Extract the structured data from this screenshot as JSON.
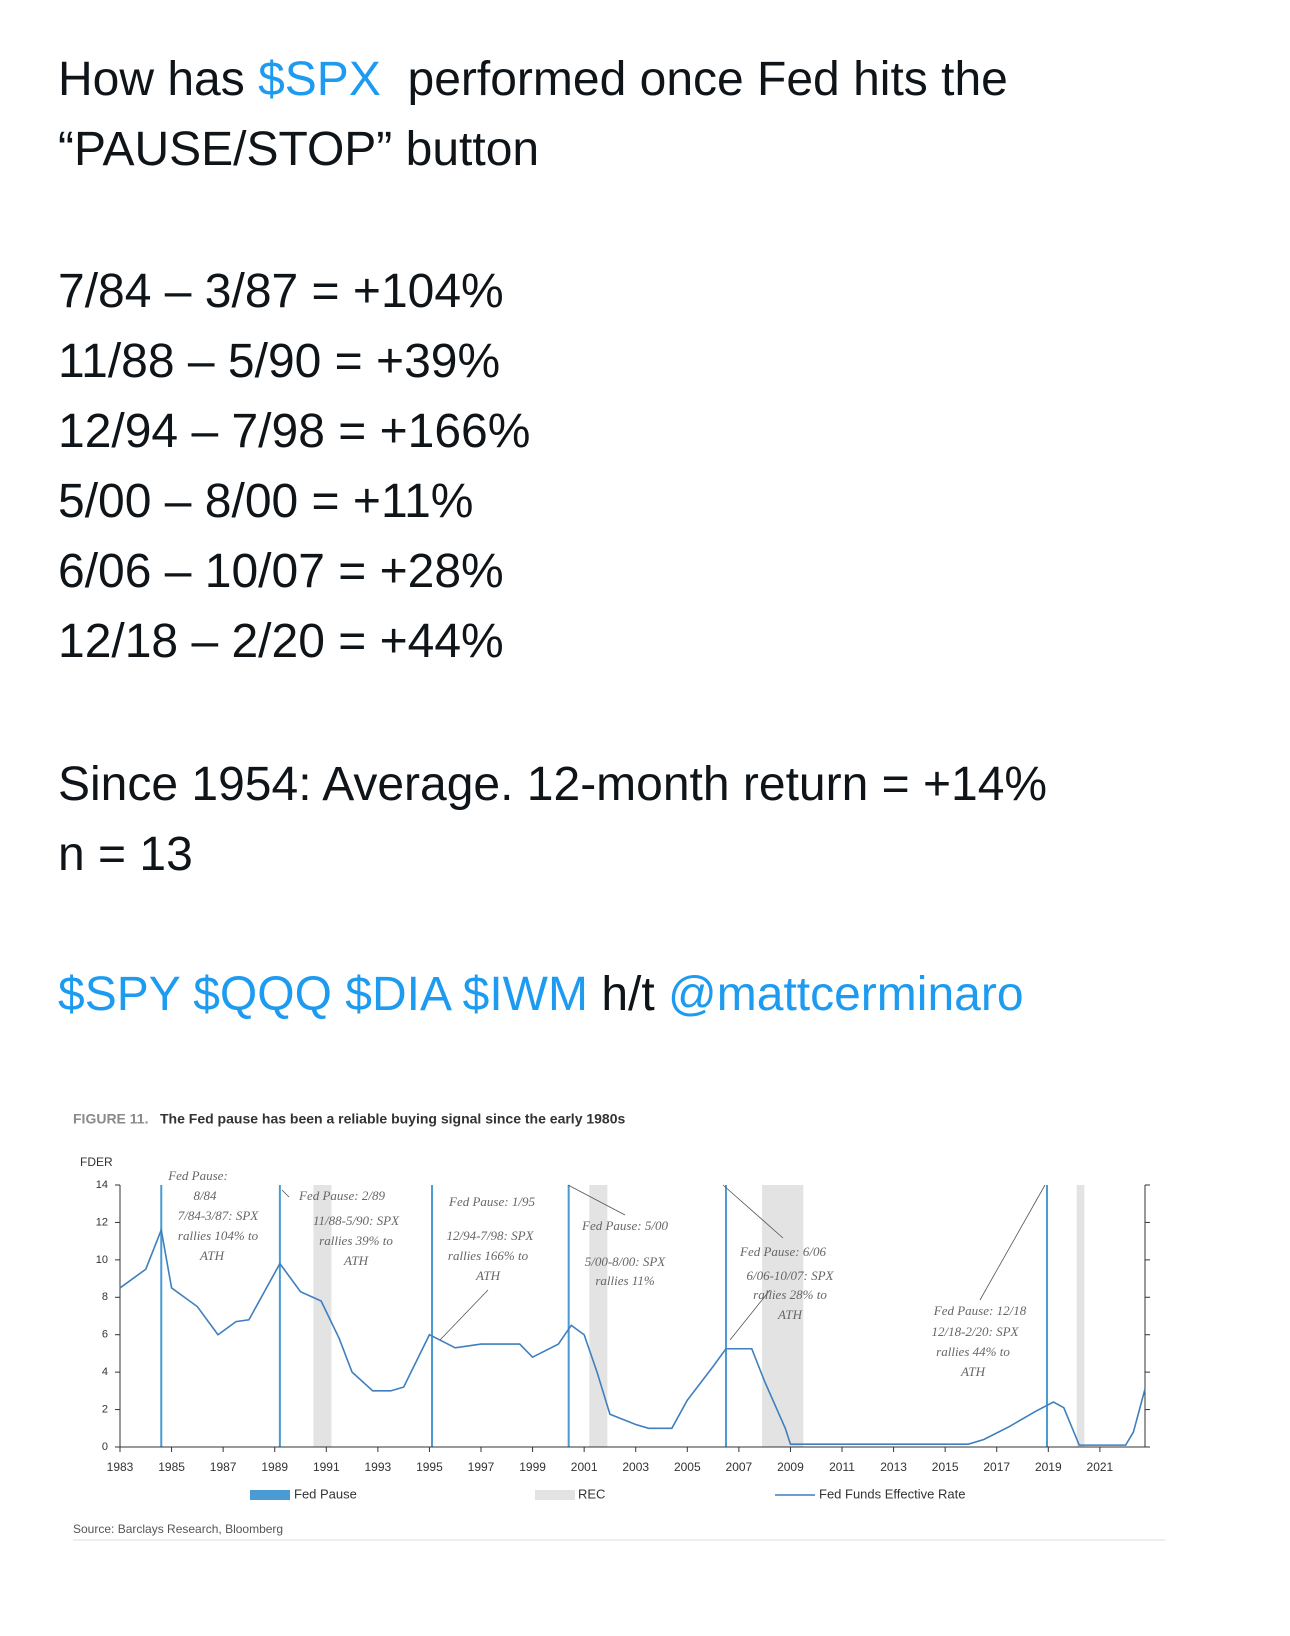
{
  "tweet": {
    "intro_before": "How has",
    "intro_cashtag": "$SPX",
    "intro_after": "performed once Fed hits the",
    "intro_line2": "“PAUSE/STOP” button",
    "periods": [
      "7/84 – 3/87 = +104%",
      "11/88 – 5/90 = +39%",
      "12/94 – 7/98 = +166%",
      "5/00 – 8/00 = +11%",
      "6/06 – 10/07 = +28%",
      "12/18 – 2/20 = +44%"
    ],
    "average": "Since 1954: Average. 12-month return = +14%",
    "n": "n = 13",
    "tags": "$SPY $QQQ $DIA $IWM",
    "ht": "h/t",
    "mention": "@mattcerminaro"
  },
  "chart_data": {
    "type": "line",
    "figure_label": "FIGURE 11.",
    "title": "The Fed pause has been a reliable buying signal since the early 1980s",
    "ylabel": "FDER",
    "xlim": [
      1983,
      2022.75
    ],
    "xticks": [
      1983,
      1985,
      1987,
      1989,
      1991,
      1993,
      1995,
      1997,
      1999,
      2001,
      2003,
      2005,
      2007,
      2009,
      2011,
      2013,
      2015,
      2017,
      2019,
      2021
    ],
    "ylim": [
      0,
      14
    ],
    "yticks": [
      0,
      2,
      4,
      6,
      8,
      10,
      12,
      14
    ],
    "x": [
      1983,
      1984,
      1984.6,
      1985,
      1986,
      1986.8,
      1987.5,
      1988,
      1989.2,
      1990,
      1990.8,
      1991.5,
      1992,
      1992.8,
      1993.5,
      1994,
      1995,
      1996,
      1997,
      1998.5,
      1999,
      2000,
      2000.5,
      2001,
      2001.5,
      2002,
      2003,
      2003.5,
      2004.4,
      2005,
      2006,
      2006.5,
      2007.5,
      2008,
      2008.8,
      2009,
      2015.9,
      2016.5,
      2017.5,
      2018.5,
      2019.2,
      2019.6,
      2020.2,
      2022,
      2022.3,
      2022.75
    ],
    "series": [
      {
        "name": "Fed Funds Effective Rate",
        "color": "#3f7fbf",
        "values": [
          8.5,
          9.5,
          11.6,
          8.5,
          7.5,
          6,
          6.7,
          6.8,
          9.8,
          8.3,
          7.8,
          5.8,
          4,
          3,
          3,
          3.2,
          6,
          5.3,
          5.5,
          5.5,
          4.8,
          5.5,
          6.5,
          6,
          4,
          1.75,
          1.2,
          1,
          1,
          2.5,
          4.3,
          5.25,
          5.25,
          3.5,
          1,
          0.15,
          0.15,
          0.4,
          1.1,
          1.9,
          2.4,
          2.1,
          0.1,
          0.1,
          0.8,
          3.1
        ]
      }
    ],
    "pause_name": "Fed Pause",
    "pause_color": "#4a9bd4",
    "pauses": [
      1984.6,
      1989.2,
      1995.1,
      2000.4,
      2006.5,
      2018.95
    ],
    "recession_name": "REC",
    "recession_color": "#e3e3e3",
    "recessions": [
      [
        1990.5,
        1991.2
      ],
      [
        2001.2,
        2001.9
      ],
      [
        2007.9,
        2009.5
      ],
      [
        2020.1,
        2020.4
      ]
    ],
    "annotations": [
      [
        "Fed Pause:",
        "8/84",
        "7/84-3/87: SPX",
        "rallies 104% to",
        "ATH"
      ],
      [
        "Fed Pause: 2/89",
        "11/88-5/90: SPX",
        "rallies 39% to",
        "ATH"
      ],
      [
        "Fed Pause: 1/95",
        "12/94-7/98: SPX",
        "rallies 166% to",
        "ATH"
      ],
      [
        "Fed Pause: 5/00",
        "5/00-8/00: SPX",
        "rallies 11%"
      ],
      [
        "Fed Pause: 6/06",
        "6/06-10/07: SPX",
        "rallies 28% to",
        "ATH"
      ],
      [
        "Fed Pause: 12/18",
        "12/18-2/20: SPX",
        "rallies 44% to",
        "ATH"
      ]
    ],
    "source": "Source: Barclays Research, Bloomberg"
  }
}
